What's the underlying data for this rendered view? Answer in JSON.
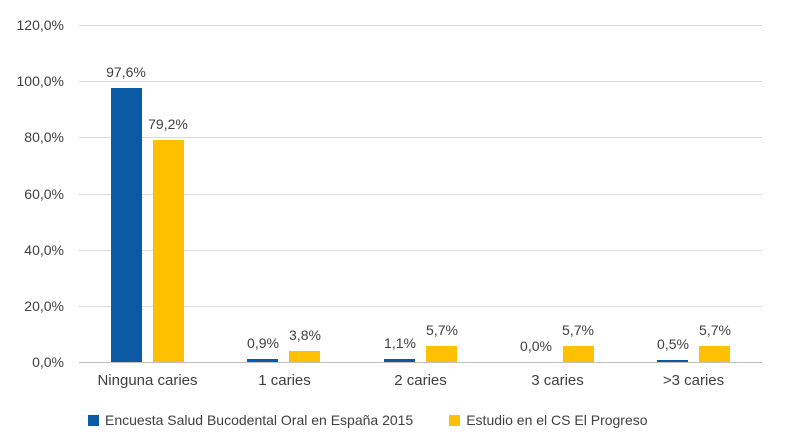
{
  "chart_data": {
    "type": "bar",
    "title": "",
    "categories": [
      "Ninguna caries",
      "1 caries",
      "2 caries",
      "3 caries",
      ">3 caries"
    ],
    "series": [
      {
        "name": "Encuesta Salud Bucodental Oral en España 2015",
        "color": "#0B5AA5",
        "values": [
          97.6,
          0.9,
          1.1,
          0.0,
          0.5
        ],
        "labels": [
          "97,6%",
          "0,9%",
          "1,1%",
          "0,0%",
          "0,5%"
        ]
      },
      {
        "name": "Estudio en el CS El Progreso",
        "color": "#FFC000",
        "values": [
          79.2,
          3.8,
          5.7,
          5.7,
          5.7
        ],
        "labels": [
          "79,2%",
          "3,8%",
          "5,7%",
          "5,7%",
          "5,7%"
        ]
      }
    ],
    "y_axis": {
      "min": 0,
      "max": 120,
      "step": 20,
      "tick_labels": [
        "0,0%",
        "20,0%",
        "40,0%",
        "60,0%",
        "80,0%",
        "100,0%",
        "120,0%"
      ]
    },
    "xlabel": "",
    "ylabel": "",
    "grid": true,
    "legend_position": "bottom",
    "styles": {
      "gridline_color": "#D9D9D9",
      "axis_line_color": "#BFBFBF",
      "text_color": "#404040",
      "background": "#FFFFFF"
    }
  }
}
